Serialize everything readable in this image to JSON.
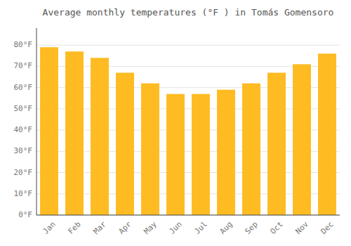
{
  "chart_data": {
    "type": "bar",
    "title": "Average monthly temperatures (°F ) in Tomás Gomensoro",
    "categories": [
      "Jan",
      "Feb",
      "Mar",
      "Apr",
      "May",
      "Jun",
      "Jul",
      "Aug",
      "Sep",
      "Oct",
      "Nov",
      "Dec"
    ],
    "values": [
      79,
      77,
      74,
      67,
      62,
      57,
      57,
      59,
      62,
      67,
      71,
      76
    ],
    "color": "#FFBB22",
    "ylim": [
      0,
      88
    ],
    "yticks": [
      {
        "value": 0,
        "label": "0°F"
      },
      {
        "value": 10,
        "label": "10°F"
      },
      {
        "value": 20,
        "label": "20°F"
      },
      {
        "value": 30,
        "label": "30°F"
      },
      {
        "value": 40,
        "label": "40°F"
      },
      {
        "value": 50,
        "label": "50°F"
      },
      {
        "value": 60,
        "label": "60°F"
      },
      {
        "value": 70,
        "label": "70°F"
      },
      {
        "value": 80,
        "label": "80°F"
      }
    ],
    "grid": true
  }
}
